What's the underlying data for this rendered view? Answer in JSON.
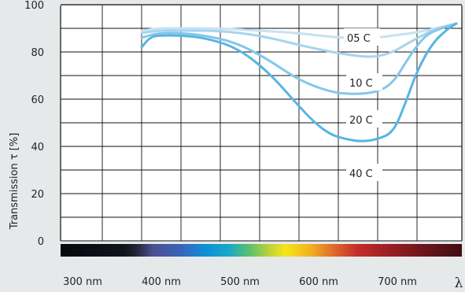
{
  "chart_data": {
    "type": "line",
    "ylabel": "Transmission τ [%]",
    "xlabel": "λ",
    "ylim": [
      0,
      100
    ],
    "xlim": [
      300,
      800
    ],
    "grid": true,
    "y_ticks": [
      {
        "v": 100,
        "label": "100"
      },
      {
        "v": 80,
        "label": "80"
      },
      {
        "v": 60,
        "label": "60"
      },
      {
        "v": 40,
        "label": "40"
      },
      {
        "v": 20,
        "label": "20"
      },
      {
        "v": 0,
        "label": "0"
      }
    ],
    "x_ticks": [
      {
        "v": 300,
        "label": "300 nm"
      },
      {
        "v": 400,
        "label": "400 nm"
      },
      {
        "v": 500,
        "label": "500 nm"
      },
      {
        "v": 600,
        "label": "600 nm"
      },
      {
        "v": 700,
        "label": "700 nm"
      }
    ],
    "spectrum_bar": true,
    "series": [
      {
        "name": "05 C",
        "color": "#c6e2f2",
        "points": [
          [
            400,
            89
          ],
          [
            420,
            90
          ],
          [
            450,
            90
          ],
          [
            500,
            90
          ],
          [
            550,
            89
          ],
          [
            600,
            88
          ],
          [
            650,
            86
          ],
          [
            680,
            86
          ],
          [
            700,
            86
          ],
          [
            720,
            87
          ],
          [
            745,
            88
          ],
          [
            775,
            90
          ],
          [
            800,
            92
          ]
        ]
      },
      {
        "name": "10 C",
        "color": "#a6d5ee",
        "points": [
          [
            400,
            88
          ],
          [
            420,
            89
          ],
          [
            450,
            89
          ],
          [
            500,
            89
          ],
          [
            550,
            87
          ],
          [
            600,
            83
          ],
          [
            640,
            80
          ],
          [
            680,
            78
          ],
          [
            700,
            78
          ],
          [
            720,
            80
          ],
          [
            745,
            85
          ],
          [
            775,
            90
          ],
          [
            800,
            92
          ]
        ]
      },
      {
        "name": "20 C",
        "color": "#84c6ea",
        "points": [
          [
            400,
            86
          ],
          [
            420,
            88
          ],
          [
            450,
            88
          ],
          [
            480,
            87
          ],
          [
            520,
            84
          ],
          [
            560,
            77
          ],
          [
            600,
            68
          ],
          [
            640,
            63
          ],
          [
            670,
            62
          ],
          [
            700,
            63
          ],
          [
            720,
            67
          ],
          [
            740,
            78
          ],
          [
            760,
            87
          ],
          [
            780,
            90
          ],
          [
            800,
            92
          ]
        ]
      },
      {
        "name": "40 C",
        "color": "#58b5e3",
        "points": [
          [
            400,
            82
          ],
          [
            410,
            86
          ],
          [
            420,
            87
          ],
          [
            450,
            87
          ],
          [
            480,
            86
          ],
          [
            520,
            82
          ],
          [
            560,
            72
          ],
          [
            600,
            57
          ],
          [
            620,
            50
          ],
          [
            640,
            45
          ],
          [
            660,
            43
          ],
          [
            680,
            42
          ],
          [
            700,
            43
          ],
          [
            720,
            46
          ],
          [
            735,
            58
          ],
          [
            750,
            72
          ],
          [
            770,
            84
          ],
          [
            790,
            90
          ],
          [
            800,
            92
          ]
        ]
      }
    ]
  }
}
